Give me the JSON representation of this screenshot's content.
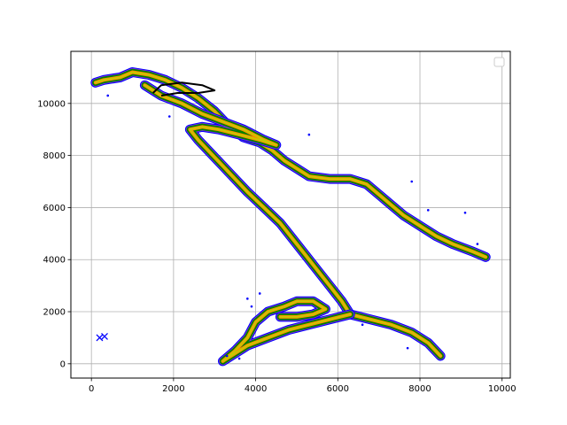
{
  "chart_data": {
    "type": "scatter",
    "title": "",
    "xlabel": "",
    "ylabel": "",
    "xlim": [
      -500,
      10200
    ],
    "ylim": [
      -550,
      12000
    ],
    "xticks": [
      0,
      2000,
      4000,
      6000,
      8000,
      10000
    ],
    "yticks": [
      0,
      2000,
      4000,
      6000,
      8000,
      10000
    ],
    "xtick_labels": [
      "0",
      "2000",
      "4000",
      "6000",
      "8000",
      "10000"
    ],
    "ytick_labels": [
      "0",
      "2000",
      "4000",
      "6000",
      "8000",
      "10000"
    ],
    "grid": true,
    "legend": {
      "placement": "top-right",
      "entries": []
    },
    "colors": {
      "outer_band": "#0000ff",
      "mid_outer_band": "#8b2be2",
      "mid_band": "#ff8c00",
      "inner_band": "#c8c800",
      "fill_band": "#008000",
      "core_line": "#000000"
    },
    "series": [
      {
        "marker": "band",
        "path": [
          [
            9600,
            4100
          ],
          [
            9300,
            4300
          ],
          [
            8800,
            4600
          ],
          [
            8400,
            4900
          ],
          [
            8000,
            5300
          ],
          [
            7600,
            5700
          ],
          [
            7300,
            6100
          ],
          [
            7000,
            6500
          ],
          [
            6700,
            6900
          ],
          [
            6300,
            7100
          ],
          [
            5800,
            7100
          ],
          [
            5300,
            7200
          ],
          [
            5000,
            7500
          ],
          [
            4700,
            7800
          ],
          [
            4400,
            8200
          ],
          [
            4100,
            8500
          ],
          [
            3700,
            8700
          ],
          [
            3300,
            9200
          ],
          [
            3000,
            9700
          ],
          [
            2600,
            10200
          ],
          [
            2200,
            10600
          ],
          [
            1800,
            10900
          ],
          [
            1400,
            11100
          ],
          [
            1000,
            11200
          ],
          [
            700,
            11000
          ],
          [
            300,
            10900
          ],
          [
            100,
            10800
          ]
        ]
      },
      {
        "marker": "band",
        "path": [
          [
            1300,
            10700
          ],
          [
            1700,
            10300
          ],
          [
            2200,
            10000
          ],
          [
            2700,
            9600
          ],
          [
            3200,
            9300
          ],
          [
            3700,
            9000
          ],
          [
            4200,
            8600
          ],
          [
            4500,
            8400
          ],
          [
            4100,
            8600
          ],
          [
            3600,
            8800
          ],
          [
            3100,
            9000
          ],
          [
            2700,
            9100
          ],
          [
            2400,
            9000
          ],
          [
            2600,
            8600
          ],
          [
            2900,
            8100
          ],
          [
            3200,
            7600
          ],
          [
            3500,
            7100
          ],
          [
            3800,
            6600
          ],
          [
            4200,
            6000
          ],
          [
            4600,
            5400
          ],
          [
            4900,
            4800
          ],
          [
            5200,
            4200
          ],
          [
            5500,
            3600
          ],
          [
            5800,
            3000
          ],
          [
            6100,
            2400
          ],
          [
            6300,
            1900
          ],
          [
            6800,
            1700
          ],
          [
            7300,
            1500
          ],
          [
            7800,
            1200
          ],
          [
            8200,
            800
          ],
          [
            8500,
            300
          ]
        ]
      },
      {
        "marker": "band",
        "path": [
          [
            6300,
            1900
          ],
          [
            5800,
            1700
          ],
          [
            5300,
            1500
          ],
          [
            4800,
            1300
          ],
          [
            4300,
            1000
          ],
          [
            3800,
            700
          ],
          [
            3500,
            400
          ],
          [
            3200,
            100
          ],
          [
            3500,
            500
          ],
          [
            3800,
            1000
          ],
          [
            4000,
            1600
          ],
          [
            4300,
            2000
          ],
          [
            4700,
            2200
          ],
          [
            5000,
            2400
          ],
          [
            5400,
            2400
          ],
          [
            5700,
            2100
          ],
          [
            5400,
            1900
          ],
          [
            5000,
            1800
          ],
          [
            4600,
            1800
          ]
        ]
      },
      {
        "marker": "line",
        "path": [
          [
            1500,
            10400
          ],
          [
            1700,
            10700
          ],
          [
            2200,
            10800
          ],
          [
            2700,
            10700
          ],
          [
            3000,
            10500
          ],
          [
            2600,
            10400
          ],
          [
            2100,
            10400
          ],
          [
            1700,
            10300
          ]
        ]
      },
      {
        "marker": "x",
        "color": "#0000ff",
        "points": [
          [
            200,
            1000
          ],
          [
            320,
            1050
          ]
        ]
      },
      {
        "marker": "dot",
        "color": "#0000ff",
        "points": [
          [
            400,
            10300
          ],
          [
            1900,
            9500
          ],
          [
            5300,
            8800
          ],
          [
            7800,
            7000
          ],
          [
            9100,
            5800
          ],
          [
            8200,
            5900
          ],
          [
            3800,
            2500
          ],
          [
            3900,
            2200
          ],
          [
            4100,
            2700
          ],
          [
            3300,
            300
          ],
          [
            3600,
            200
          ],
          [
            7700,
            600
          ],
          [
            6600,
            1500
          ],
          [
            9400,
            4600
          ]
        ]
      }
    ]
  }
}
